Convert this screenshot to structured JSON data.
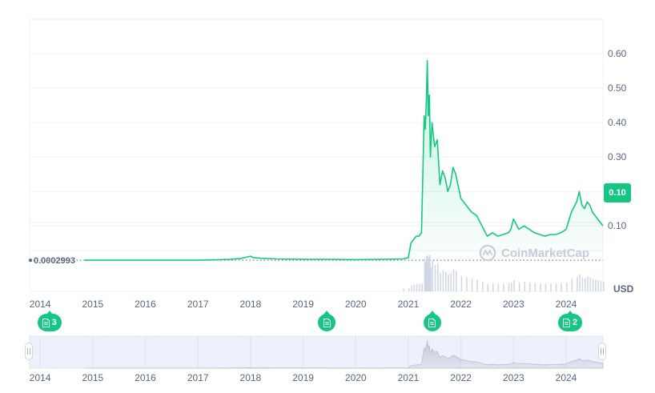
{
  "chart_data": {
    "type": "area",
    "currency": "USD",
    "current_price_label": "0.10",
    "start_price_label": "0.0002993",
    "yticks": [
      "0.10",
      "0.20",
      "0.30",
      "0.40",
      "0.50",
      "0.60"
    ],
    "ytick_values": [
      0.1,
      0.2,
      0.3,
      0.4,
      0.5,
      0.6
    ],
    "ylim": [
      -0.09,
      0.7
    ],
    "xlim": [
      2013.8,
      2024.7
    ],
    "xticks": [
      "2014",
      "2015",
      "2016",
      "2017",
      "2018",
      "2019",
      "2020",
      "2021",
      "2022",
      "2023",
      "2024"
    ],
    "xtick_values": [
      2014,
      2015,
      2016,
      2017,
      2018,
      2019,
      2020,
      2021,
      2022,
      2023,
      2024
    ],
    "x": [
      2014.0,
      2015.0,
      2016.0,
      2017.0,
      2017.4,
      2017.6,
      2017.8,
      2018.0,
      2018.05,
      2018.2,
      2018.5,
      2019.0,
      2019.5,
      2020.0,
      2020.5,
      2020.9,
      2021.0,
      2021.05,
      2021.1,
      2021.15,
      2021.2,
      2021.25,
      2021.3,
      2021.32,
      2021.34,
      2021.36,
      2021.38,
      2021.4,
      2021.42,
      2021.45,
      2021.5,
      2021.55,
      2021.6,
      2021.65,
      2021.7,
      2021.75,
      2021.8,
      2021.85,
      2021.9,
      2022.0,
      2022.1,
      2022.2,
      2022.3,
      2022.4,
      2022.5,
      2022.6,
      2022.7,
      2022.8,
      2022.9,
      2022.95,
      2023.0,
      2023.1,
      2023.2,
      2023.3,
      2023.4,
      2023.5,
      2023.6,
      2023.7,
      2023.8,
      2023.9,
      2024.0,
      2024.1,
      2024.2,
      2024.25,
      2024.3,
      2024.35,
      2024.4,
      2024.45,
      2024.5,
      2024.55,
      2024.6,
      2024.65,
      2024.7
    ],
    "values": [
      0.0003,
      0.0003,
      0.0003,
      0.0004,
      0.002,
      0.003,
      0.005,
      0.012,
      0.008,
      0.006,
      0.004,
      0.003,
      0.003,
      0.002,
      0.003,
      0.004,
      0.008,
      0.05,
      0.06,
      0.07,
      0.07,
      0.08,
      0.42,
      0.38,
      0.45,
      0.58,
      0.42,
      0.48,
      0.3,
      0.4,
      0.33,
      0.35,
      0.22,
      0.26,
      0.24,
      0.2,
      0.22,
      0.27,
      0.25,
      0.18,
      0.16,
      0.14,
      0.13,
      0.1,
      0.07,
      0.08,
      0.07,
      0.075,
      0.08,
      0.09,
      0.12,
      0.09,
      0.1,
      0.09,
      0.08,
      0.075,
      0.07,
      0.075,
      0.075,
      0.08,
      0.09,
      0.14,
      0.17,
      0.2,
      0.16,
      0.15,
      0.17,
      0.16,
      0.14,
      0.13,
      0.12,
      0.11,
      0.1
    ],
    "line_color": "#16c784",
    "fill_color": "#16c784"
  },
  "news_markers": [
    {
      "label": "3",
      "year": 2014.1
    },
    {
      "label": "",
      "year": 2019.45
    },
    {
      "label": "",
      "year": 2021.45
    },
    {
      "label": "2",
      "year": 2024.0
    }
  ],
  "navigator": {
    "xticks": [
      "2014",
      "2015",
      "2016",
      "2017",
      "2018",
      "2019",
      "2020",
      "2021",
      "2022",
      "2023",
      "2024"
    ]
  },
  "watermark": "CoinMarketCap",
  "axis_unit": "USD"
}
